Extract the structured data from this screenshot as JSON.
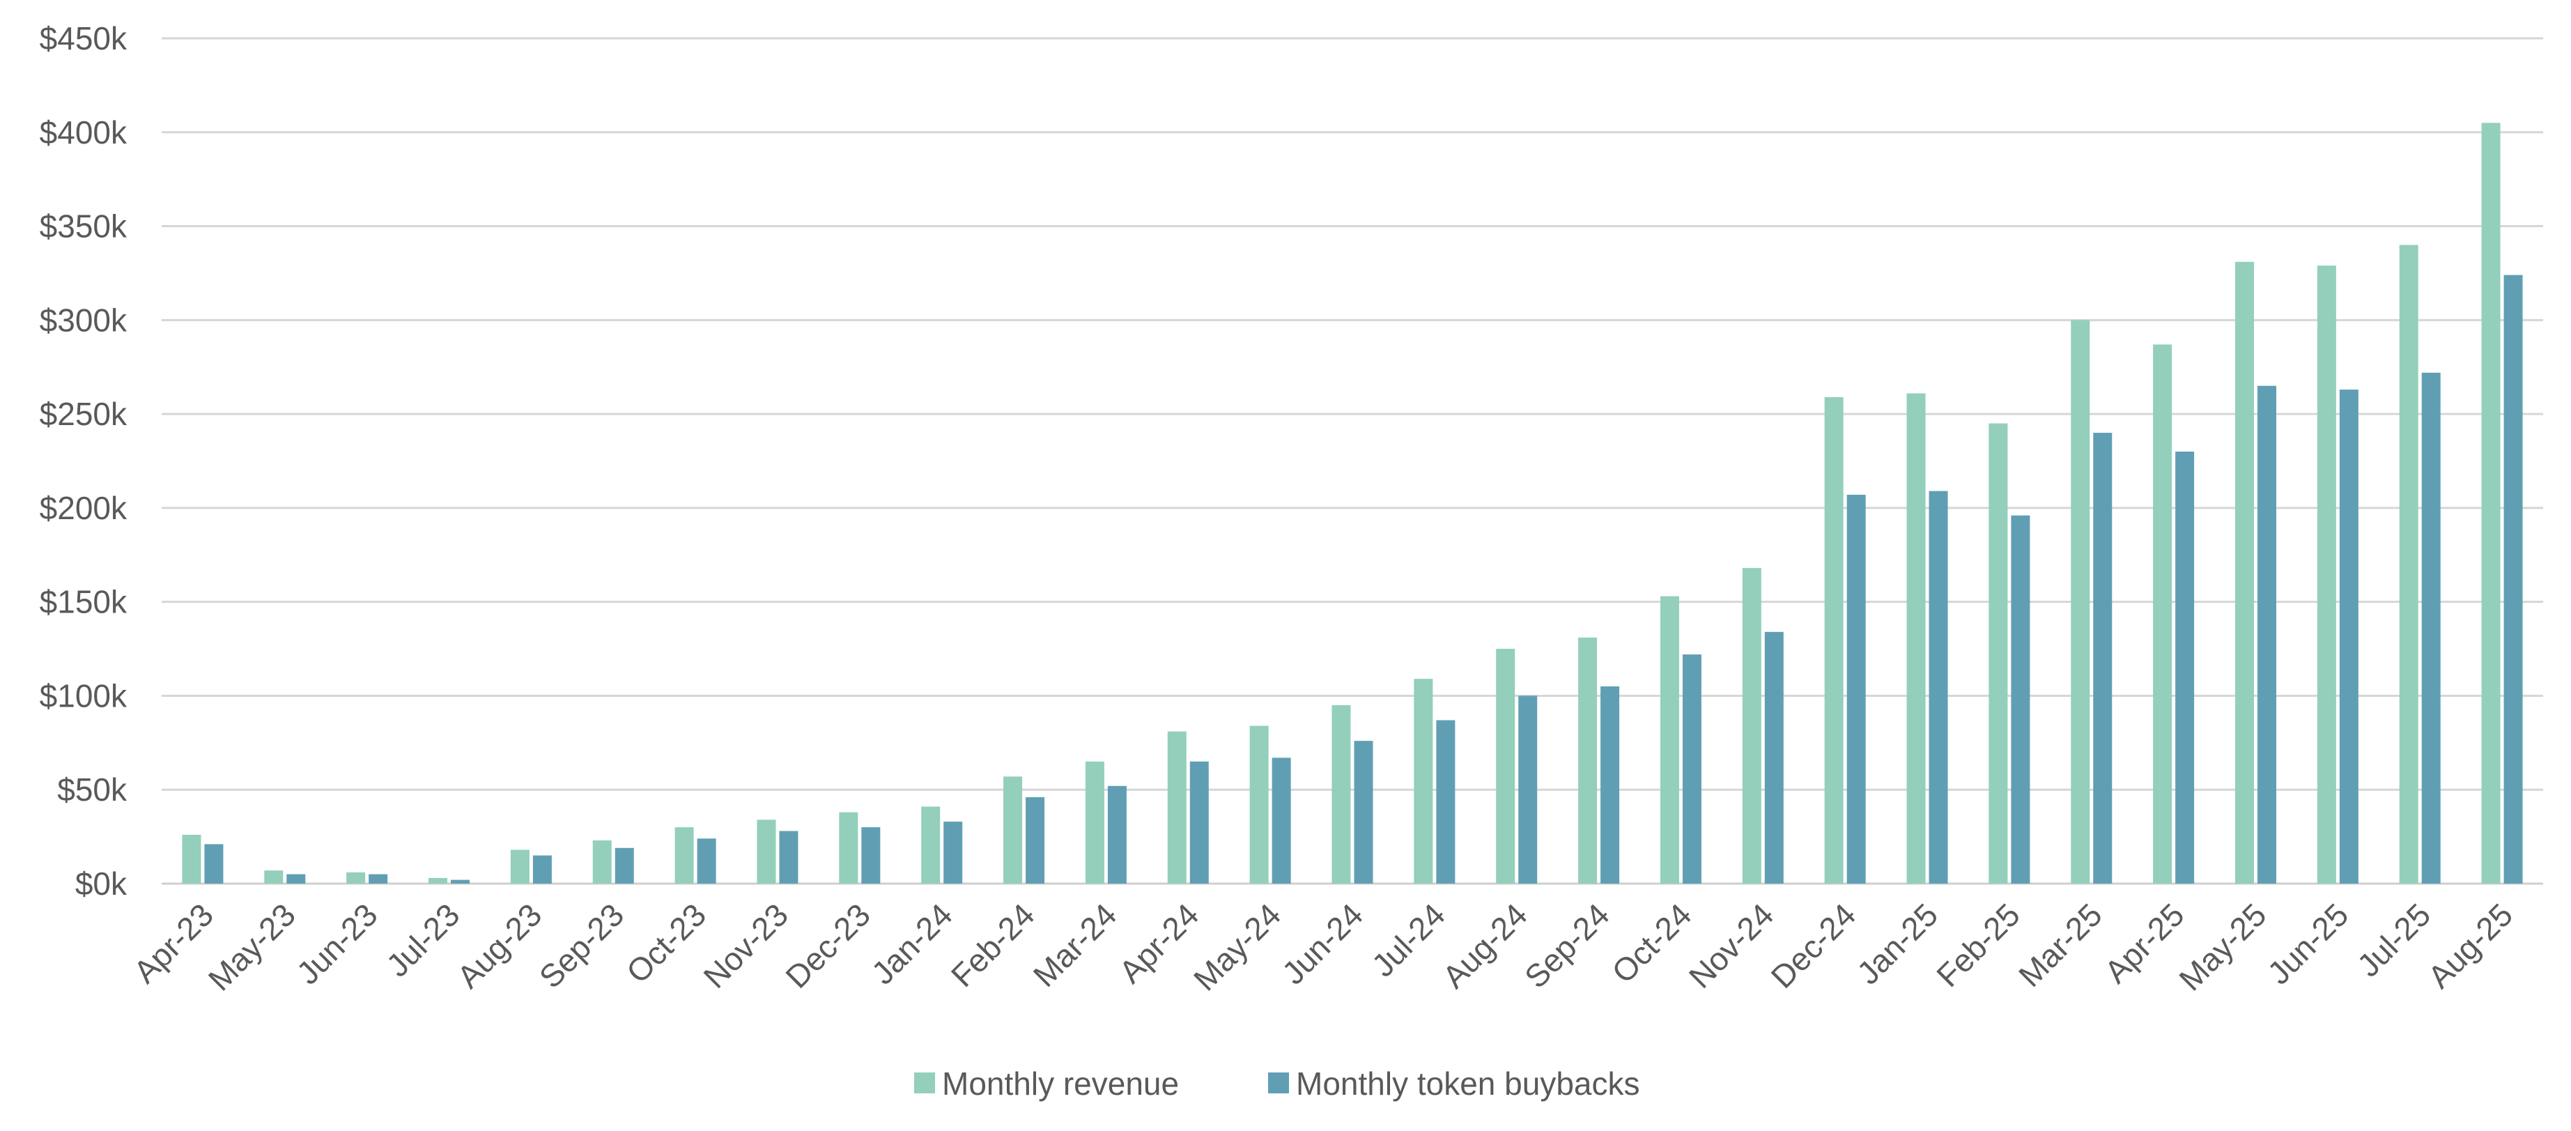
{
  "chart_data": {
    "type": "bar",
    "title": "",
    "xlabel": "",
    "ylabel": "",
    "ylim": [
      0,
      450000
    ],
    "y_ticks": [
      {
        "value": 0,
        "label": "$0k"
      },
      {
        "value": 50000,
        "label": "$50k"
      },
      {
        "value": 100000,
        "label": "$100k"
      },
      {
        "value": 150000,
        "label": "$150k"
      },
      {
        "value": 200000,
        "label": "$200k"
      },
      {
        "value": 250000,
        "label": "$250k"
      },
      {
        "value": 300000,
        "label": "$300k"
      },
      {
        "value": 350000,
        "label": "$350k"
      },
      {
        "value": 400000,
        "label": "$400k"
      },
      {
        "value": 450000,
        "label": "$450k"
      }
    ],
    "grid": true,
    "legend_position": "bottom-center",
    "categories": [
      "Apr-23",
      "May-23",
      "Jun-23",
      "Jul-23",
      "Aug-23",
      "Sep-23",
      "Oct-23",
      "Nov-23",
      "Dec-23",
      "Jan-24",
      "Feb-24",
      "Mar-24",
      "Apr-24",
      "May-24",
      "Jun-24",
      "Jul-24",
      "Aug-24",
      "Sep-24",
      "Oct-24",
      "Nov-24",
      "Dec-24",
      "Jan-25",
      "Feb-25",
      "Mar-25",
      "Apr-25",
      "May-25",
      "Jun-25",
      "Jul-25",
      "Aug-25"
    ],
    "series": [
      {
        "name": "Monthly revenue",
        "color": "#93cfbb",
        "values": [
          26000,
          7000,
          6000,
          3000,
          18000,
          23000,
          30000,
          34000,
          38000,
          41000,
          57000,
          65000,
          81000,
          84000,
          95000,
          109000,
          125000,
          131000,
          153000,
          168000,
          259000,
          261000,
          245000,
          300000,
          287000,
          331000,
          329000,
          340000,
          405000
        ]
      },
      {
        "name": "Monthly token buybacks",
        "color": "#609fb3",
        "values": [
          21000,
          5000,
          5000,
          2000,
          15000,
          19000,
          24000,
          28000,
          30000,
          33000,
          46000,
          52000,
          65000,
          67000,
          76000,
          87000,
          100000,
          105000,
          122000,
          134000,
          207000,
          209000,
          196000,
          240000,
          230000,
          265000,
          263000,
          272000,
          324000
        ]
      }
    ]
  }
}
